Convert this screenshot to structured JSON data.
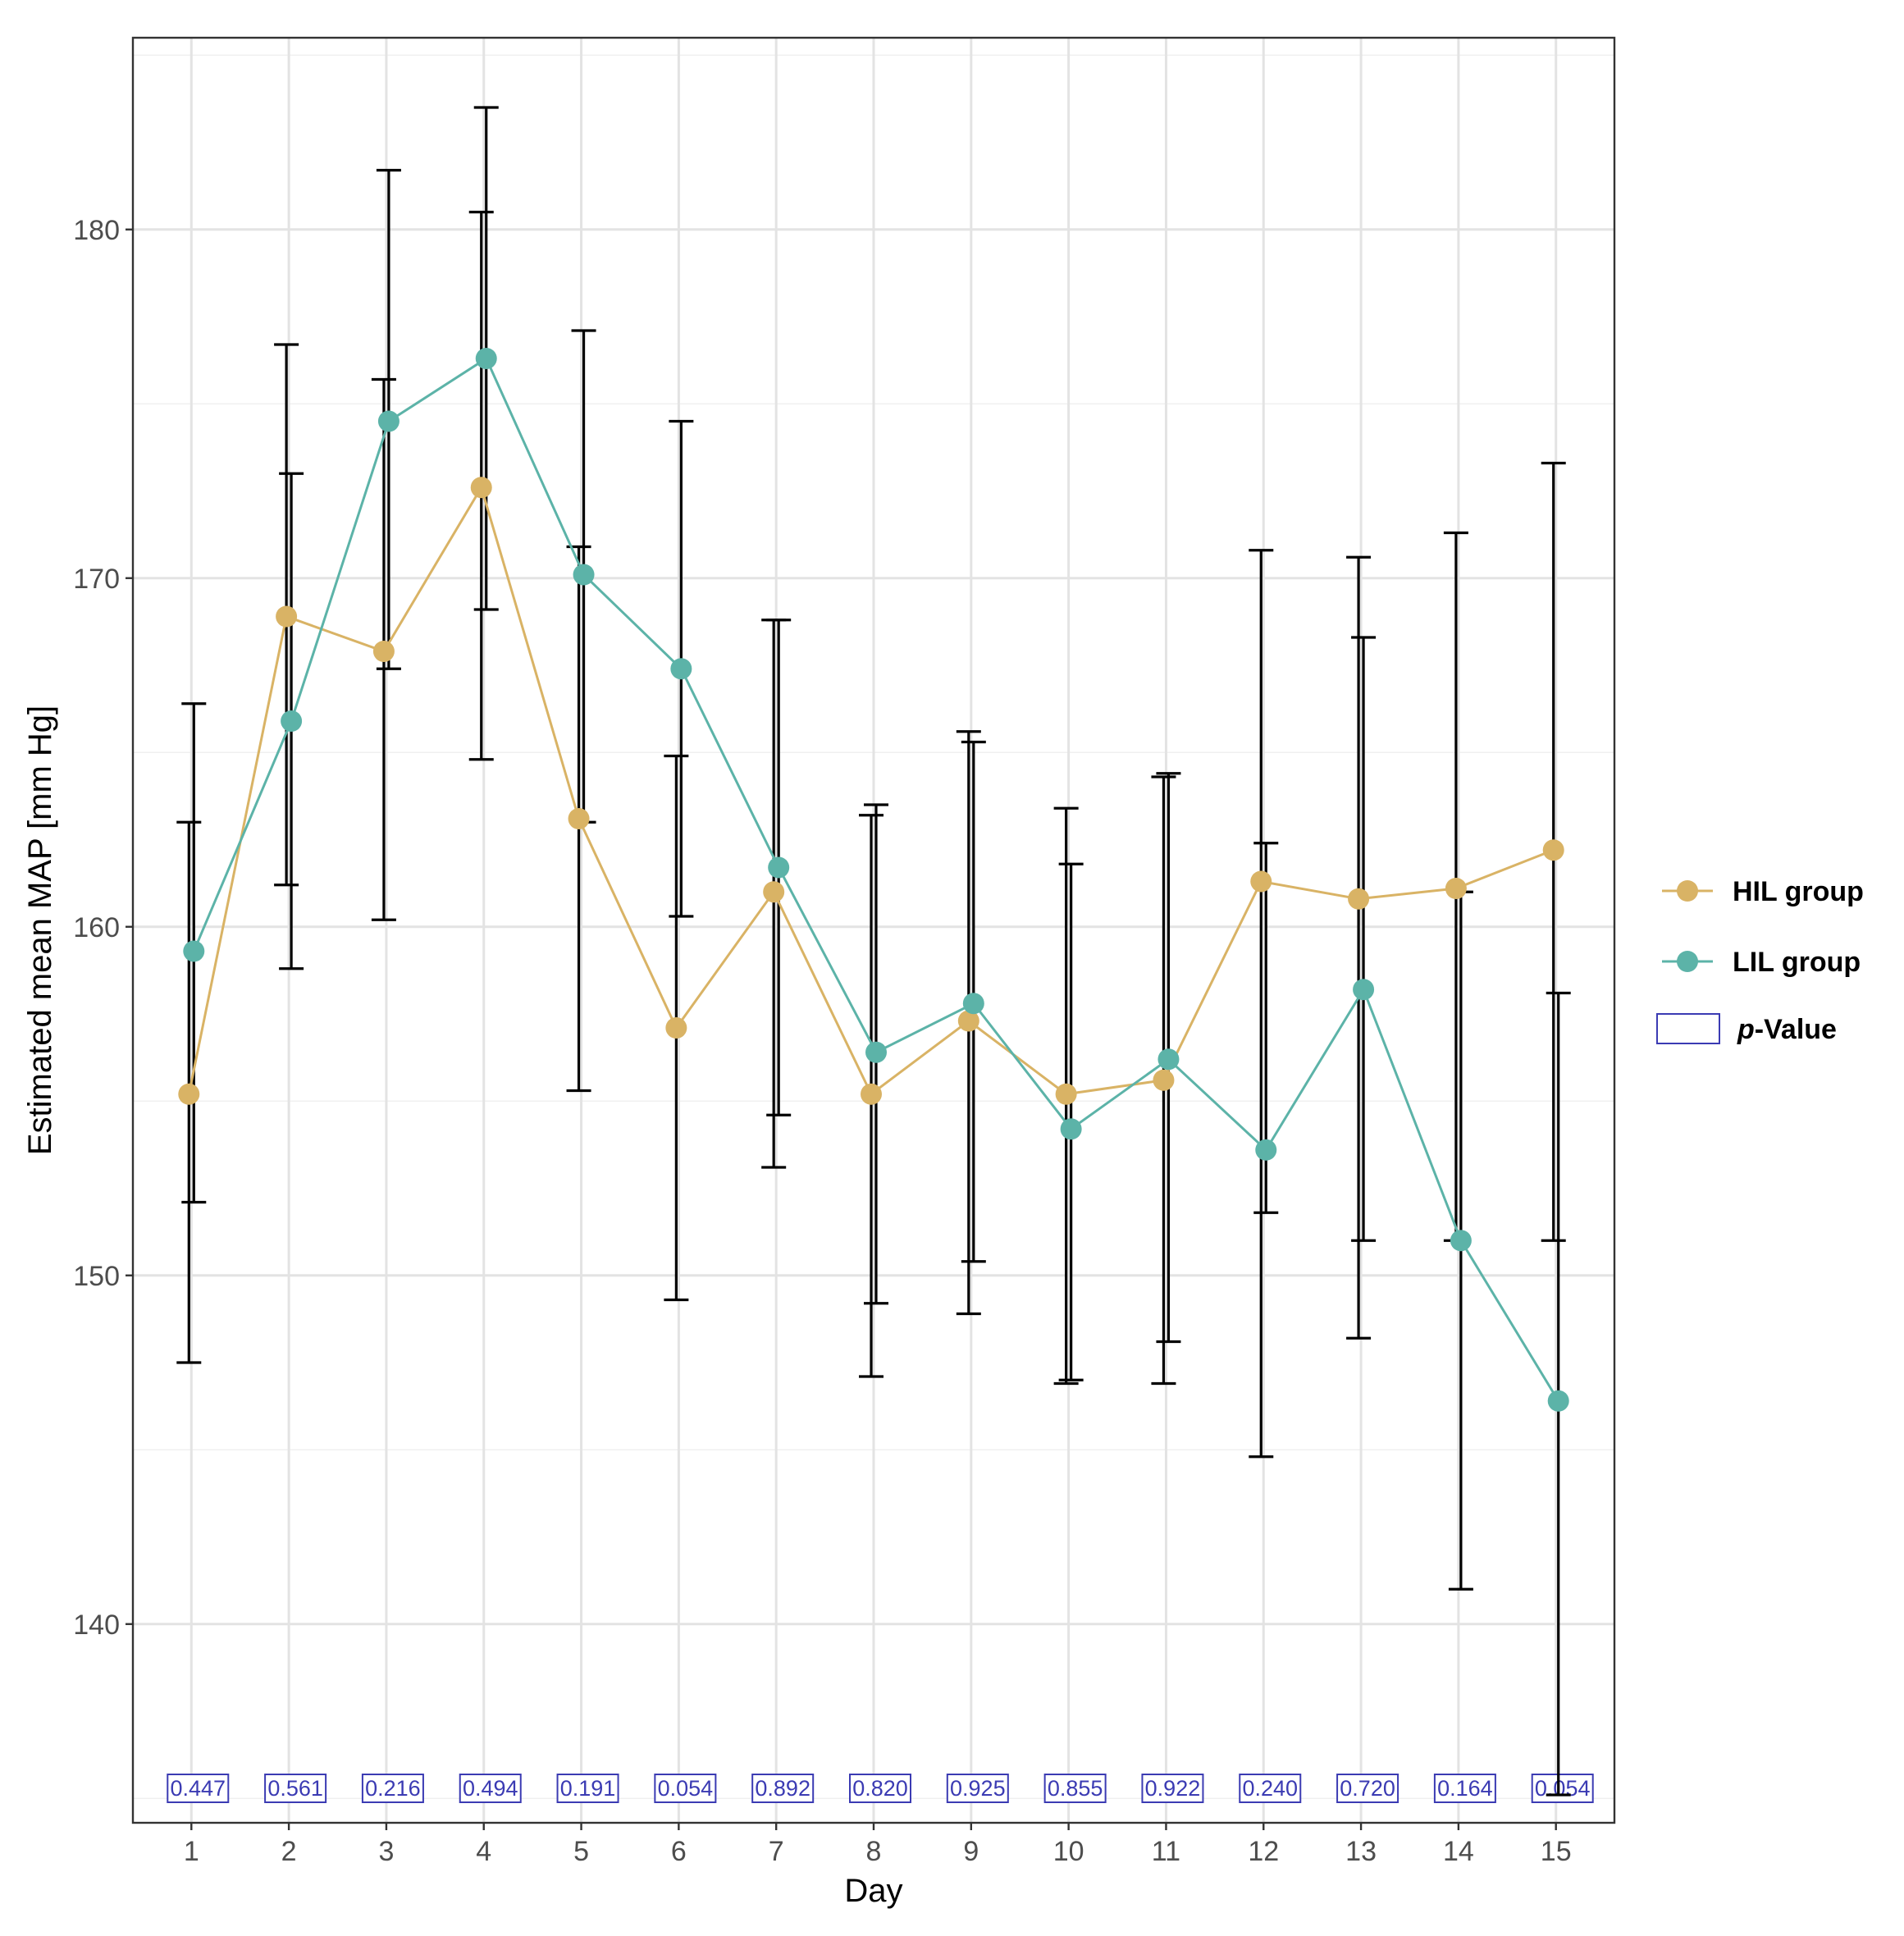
{
  "chart_data": {
    "type": "line",
    "xlabel": "Day",
    "ylabel": "Estimated mean MAP [mm Hg]",
    "ylim": [
      134.3,
      185.5
    ],
    "xlim": [
      0.4,
      15.6
    ],
    "yticks": [
      140,
      150,
      160,
      170,
      180
    ],
    "ytick_labels": [
      "140",
      "150",
      "160",
      "170",
      "180"
    ],
    "categories": [
      "1",
      "2",
      "3",
      "4",
      "5",
      "6",
      "7",
      "8",
      "9",
      "10",
      "11",
      "12",
      "13",
      "14",
      "15"
    ],
    "x": [
      1,
      2,
      3,
      4,
      5,
      6,
      7,
      8,
      9,
      10,
      11,
      12,
      13,
      14,
      15
    ],
    "series": [
      {
        "name": "HIL group",
        "color": "#d9b365",
        "values": [
          155.2,
          168.9,
          167.9,
          172.6,
          163.1,
          157.1,
          161.0,
          155.2,
          157.3,
          155.2,
          155.6,
          161.3,
          160.8,
          161.1,
          162.2
        ],
        "ci_lower": [
          147.5,
          161.2,
          160.2,
          164.8,
          155.3,
          149.3,
          153.1,
          147.1,
          148.9,
          146.9,
          146.9,
          144.8,
          148.2,
          151.0,
          151.0
        ],
        "ci_upper": [
          163.0,
          176.7,
          175.7,
          180.5,
          170.9,
          164.9,
          168.8,
          163.2,
          165.6,
          163.4,
          164.3,
          170.8,
          170.6,
          171.3,
          173.3
        ]
      },
      {
        "name": "LIL group",
        "color": "#5cb3a8",
        "values": [
          159.3,
          165.9,
          174.5,
          176.3,
          170.1,
          167.4,
          161.7,
          156.4,
          157.8,
          154.2,
          156.2,
          153.6,
          158.2,
          151.0,
          146.4
        ],
        "ci_lower": [
          152.1,
          158.8,
          167.4,
          169.1,
          163.0,
          160.3,
          154.6,
          149.2,
          150.4,
          147.0,
          148.1,
          151.8,
          151.0,
          141.0,
          135.1
        ],
        "ci_upper": [
          166.4,
          173.0,
          181.7,
          183.5,
          177.1,
          174.5,
          168.8,
          163.5,
          165.3,
          161.8,
          164.4,
          162.4,
          168.3,
          161.0,
          158.1
        ]
      }
    ],
    "p_values": [
      "0.447",
      "0.561",
      "0.216",
      "0.494",
      "0.191",
      "0.054",
      "0.892",
      "0.820",
      "0.925",
      "0.855",
      "0.922",
      "0.240",
      "0.720",
      "0.164",
      "0.054"
    ],
    "legend": {
      "position": "right",
      "entries": [
        "HIL group",
        "LIL group"
      ],
      "pvalue_prefix": "p",
      "pvalue_suffix": "-Value",
      "pvalue_color": "#3b3bb3"
    },
    "grid": true
  }
}
